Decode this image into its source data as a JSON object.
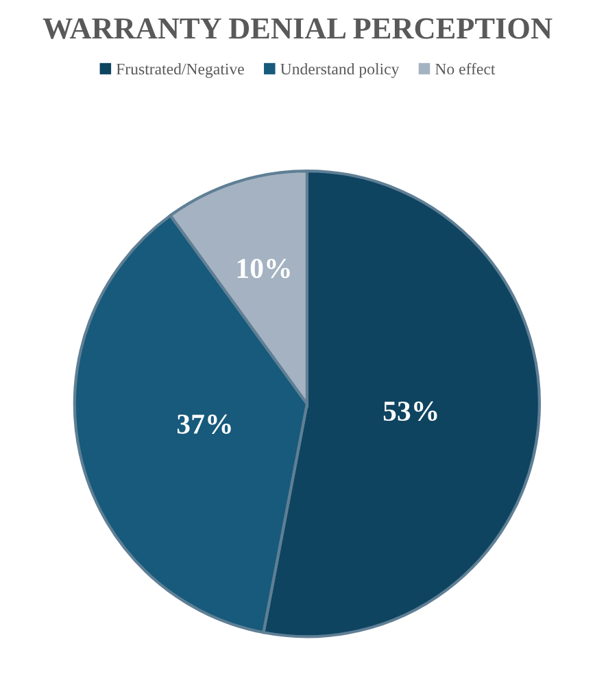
{
  "chart_data": {
    "type": "pie",
    "title": "WARRANTY DENIAL PERCEPTION",
    "categories": [
      "Frustrated/Negative",
      "Understand policy",
      "No effect"
    ],
    "values": [
      53,
      37,
      10
    ],
    "colors": [
      "#0e4460",
      "#175a7b",
      "#a4b2c1"
    ],
    "value_labels": [
      "53%",
      "37%",
      "10%"
    ],
    "legend": "top"
  }
}
